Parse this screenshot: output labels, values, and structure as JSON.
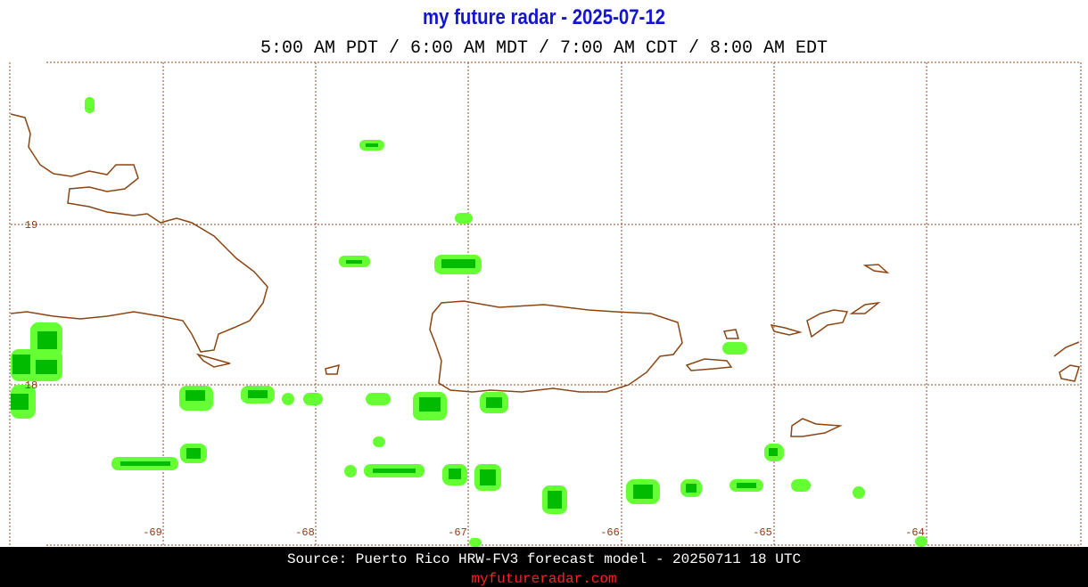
{
  "header": {
    "title": "my future radar - 2025-07-12",
    "subtitle": "5:00 AM PDT /  6:00 AM MDT /  7:00 AM CDT /  8:00 AM EDT"
  },
  "grid": {
    "lon_labels": [
      "-69",
      "-68",
      "-67",
      "-66",
      "-65",
      "-64"
    ],
    "lat_labels": [
      "19",
      "18"
    ]
  },
  "footer": {
    "source": "Source: Puerto Rico HRW-FV3 forecast model - 20250711 18 UTC",
    "site": "myfutureradar.com"
  }
}
